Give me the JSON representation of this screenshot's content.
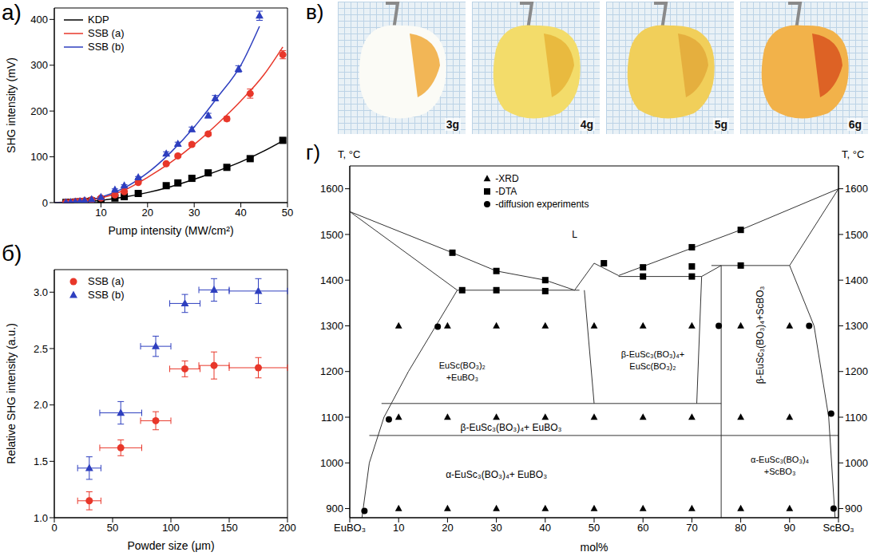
{
  "chart_data": [
    {
      "panel": "а)",
      "type": "scatter",
      "x_label": "Pump intensity (MW/cm²)",
      "y_label": "SHG intensity (mV)",
      "xlim": [
        0,
        50
      ],
      "xticks": [
        10,
        20,
        30,
        40,
        50
      ],
      "ylim": [
        0,
        425
      ],
      "yticks": [
        0,
        100,
        200,
        300,
        400
      ],
      "legend": "upper left",
      "series": [
        {
          "name": "KDP",
          "color": "#000000",
          "marker": "square",
          "line_style": "solid",
          "x": [
            2.5,
            3.5,
            4.5,
            5.5,
            6.5,
            8,
            10,
            13,
            15,
            18,
            24,
            26.5,
            29.5,
            33,
            37,
            42,
            49
          ],
          "values": [
            0.4,
            0.7,
            1.2,
            1.7,
            2.4,
            3.6,
            5.7,
            10,
            13,
            20,
            37,
            43,
            53,
            65,
            77,
            96,
            136
          ],
          "errors": [
            0.5,
            0.5,
            0.5,
            0.5,
            0.5,
            0.5,
            0.5,
            1,
            1,
            1,
            2,
            2,
            2,
            2,
            3,
            3,
            4
          ],
          "fit_x": [
            0,
            5,
            10,
            15,
            20,
            25,
            30,
            35,
            40,
            45,
            49
          ],
          "fit_values": [
            0,
            1.5,
            5,
            12,
            22,
            35,
            51,
            69,
            89,
            113,
            135
          ]
        },
        {
          "name": "SSB (a)",
          "color": "#e8372a",
          "marker": "circle",
          "line_style": "solid",
          "x": [
            2.5,
            3.5,
            4.5,
            5.5,
            6.5,
            8,
            10,
            13,
            15,
            18,
            24,
            26.5,
            29.5,
            33,
            37,
            42,
            49
          ],
          "values": [
            0.5,
            1,
            2,
            3,
            4,
            6,
            10,
            17,
            24,
            44,
            85,
            102,
            127,
            150,
            183,
            238,
            323
          ],
          "errors": [
            0.5,
            0.5,
            0.5,
            0.5,
            0.5,
            1,
            1,
            1,
            2,
            2,
            3,
            3,
            4,
            4,
            5,
            10,
            9
          ],
          "fit_x": [
            0,
            5,
            10,
            15,
            20,
            25,
            30,
            35,
            40,
            45,
            49
          ],
          "fit_values": [
            0,
            3,
            10,
            27,
            55,
            88,
            127,
            172,
            222,
            280,
            340
          ]
        },
        {
          "name": "SSB (b)",
          "color": "#2e3fbf",
          "marker": "triangle",
          "line_style": "solid",
          "x": [
            2.5,
            3.5,
            4.5,
            5.5,
            6.5,
            8,
            10,
            13,
            15,
            18,
            24,
            26.5,
            29.5,
            33,
            34.5,
            39.5,
            44
          ],
          "values": [
            0.5,
            1,
            2,
            3,
            5,
            7,
            12,
            28,
            37,
            55,
            107,
            128,
            160,
            190,
            228,
            292,
            408
          ],
          "errors": [
            0.5,
            0.5,
            0.5,
            0.5,
            0.5,
            1,
            1,
            2,
            2,
            2,
            4,
            4,
            5,
            5,
            6,
            7,
            10
          ],
          "fit_x": [
            0,
            5,
            10,
            15,
            20,
            25,
            30,
            35,
            40,
            44
          ],
          "fit_values": [
            0,
            3,
            12,
            32,
            65,
            110,
            165,
            230,
            300,
            385
          ]
        }
      ]
    },
    {
      "panel": "б)",
      "type": "scatter",
      "x_label": "Powder size (μm)",
      "y_label": "Relative SHG intensity (a.u.)",
      "xlim": [
        0,
        200
      ],
      "xticks": [
        0,
        50,
        100,
        150,
        200
      ],
      "ylim": [
        1,
        3.2
      ],
      "yticks": [
        {
          "value": 1,
          "label": "1.0"
        },
        1.5,
        {
          "value": 2,
          "label": "2.0"
        },
        2.5,
        {
          "value": 3,
          "label": "3.0"
        }
      ],
      "legend": "upper left",
      "series": [
        {
          "name": "SSB (a)",
          "color": "#e8372a",
          "marker": "circle",
          "x": [
            30,
            57,
            87,
            112,
            137,
            175
          ],
          "x_errors": [
            10,
            18,
            13,
            13,
            13,
            25
          ],
          "values": [
            1.15,
            1.62,
            1.86,
            2.32,
            2.35,
            2.33
          ],
          "errors": [
            0.08,
            0.07,
            0.08,
            0.07,
            0.12,
            0.09
          ]
        },
        {
          "name": "SSB (b)",
          "color": "#2e3fbf",
          "marker": "triangle",
          "x": [
            30,
            57,
            87,
            112,
            137,
            175
          ],
          "x_errors": [
            10,
            18,
            13,
            13,
            13,
            25
          ],
          "values": [
            1.44,
            1.93,
            2.52,
            2.9,
            3.02,
            3.01
          ],
          "errors": [
            0.1,
            0.1,
            0.09,
            0.08,
            0.1,
            0.11
          ]
        }
      ]
    },
    {
      "panel": "г)",
      "type": "scatter",
      "x_label": "mol%",
      "y_label": "T, °C",
      "y2_label": "T, °C",
      "xlim": [
        0,
        100
      ],
      "xticks": [
        {
          "value": 0,
          "label": "EuBO₃"
        },
        10,
        20,
        30,
        40,
        50,
        60,
        70,
        80,
        90,
        {
          "value": 100,
          "label": "ScBO₃"
        }
      ],
      "ylim": [
        880,
        1650
      ],
      "yticks": [
        900,
        1000,
        1100,
        1200,
        1300,
        1400,
        1500,
        1600
      ],
      "y2lim": [
        880,
        1650
      ],
      "y2ticks": [
        900,
        1000,
        1100,
        1200,
        1300,
        1400,
        1500,
        1600
      ],
      "legend": "upper center",
      "series": [
        {
          "name": "-XRD",
          "color": "#000000",
          "marker": "triangle",
          "x": [
            10,
            20,
            30,
            40,
            50,
            60,
            70,
            80,
            90,
            10,
            20,
            30,
            40,
            50,
            60,
            70,
            80,
            90,
            10,
            20,
            30,
            40,
            50,
            60,
            70,
            80,
            90
          ],
          "values": [
            1300,
            1300,
            1300,
            1300,
            1300,
            1300,
            1300,
            1300,
            1300,
            1100,
            1100,
            1100,
            1100,
            1100,
            1100,
            1100,
            1100,
            1100,
            900,
            900,
            900,
            900,
            900,
            900,
            900,
            900,
            900
          ]
        },
        {
          "name": "-DTA",
          "color": "#000000",
          "marker": "square",
          "x": [
            21,
            23,
            30,
            30,
            40,
            40,
            52,
            60,
            60,
            70,
            70,
            70,
            80,
            80
          ],
          "values": [
            1460,
            1378,
            1420,
            1378,
            1400,
            1376,
            1437,
            1428,
            1408,
            1472,
            1430,
            1408,
            1510,
            1432
          ]
        },
        {
          "name": "-diffusion experiments",
          "color": "#000000",
          "marker": "circle",
          "x": [
            3,
            8,
            18,
            75.5,
            94,
            98.5,
            99
          ],
          "values": [
            895,
            1095,
            1298,
            1300,
            1300,
            1108,
            900
          ]
        }
      ],
      "boundaries": [
        {
          "x": [
            0,
            21,
            30,
            40,
            46
          ],
          "y": [
            1550,
            1460,
            1420,
            1400,
            1378
          ]
        },
        {
          "x": [
            0,
            22
          ],
          "y": [
            1550,
            1378
          ]
        },
        {
          "x": [
            22,
            47
          ],
          "y": [
            1378,
            1378
          ]
        },
        {
          "x": [
            46,
            50,
            55
          ],
          "y": [
            1378,
            1437,
            1410
          ]
        },
        {
          "x": [
            48,
            50
          ],
          "y": [
            1378,
            1130
          ]
        },
        {
          "x": [
            55,
            70,
            80,
            100
          ],
          "y": [
            1410,
            1470,
            1510,
            1600
          ]
        },
        {
          "x": [
            55,
            72
          ],
          "y": [
            1408,
            1408
          ]
        },
        {
          "x": [
            72,
            76
          ],
          "y": [
            1408,
            1432
          ]
        },
        {
          "x": [
            74,
            90
          ],
          "y": [
            1432,
            1432
          ]
        },
        {
          "x": [
            72,
            71
          ],
          "y": [
            1408,
            1130
          ]
        },
        {
          "x": [
            76,
            76
          ],
          "y": [
            1432,
            880
          ]
        },
        {
          "x": [
            90,
            95,
            98,
            99.3
          ],
          "y": [
            1432,
            1300,
            1100,
            880
          ]
        },
        {
          "x": [
            100,
            90
          ],
          "y": [
            1600,
            1432
          ]
        },
        {
          "x": [
            22,
            12,
            7,
            4,
            2.5
          ],
          "y": [
            1378,
            1200,
            1100,
            1000,
            880
          ]
        },
        {
          "x": [
            6.5,
            76
          ],
          "y": [
            1130,
            1130
          ]
        },
        {
          "x": [
            4,
            100
          ],
          "y": [
            1060,
            1060
          ]
        }
      ],
      "annotations": [
        {
          "lines": [
            "L"
          ],
          "x": 46,
          "y": 1500
        },
        {
          "lines": [
            "EuSc(BO₃)₂",
            "+EuBO₃"
          ],
          "x": 23,
          "y": 1200
        },
        {
          "lines": [
            "β-EuSc₃(BO₃)₄+",
            "EuSc(BO₃)₂"
          ],
          "x": 62,
          "y": 1225
        },
        {
          "lines": [
            "β-EuSc₃(BO₃)₄+ EuBO₃"
          ],
          "x": 33,
          "y": 1078
        },
        {
          "lines": [
            "α-EuSc₃(BO₃)₄+ EuBO₃"
          ],
          "x": 30,
          "y": 975
        },
        {
          "lines": [
            "α-EuSc₃(BO₃)₄",
            "+ScBO₃"
          ],
          "x": 88,
          "y": 995
        }
      ],
      "vertical_annotations": [
        {
          "text": "β-EuSc₃(BO₃)₄+ScBO₃",
          "x": 84,
          "y": 1280
        }
      ]
    }
  ],
  "photo_panel": {
    "panel": "в)",
    "labels": [
      "3g",
      "4g",
      "5g",
      "6g"
    ]
  }
}
